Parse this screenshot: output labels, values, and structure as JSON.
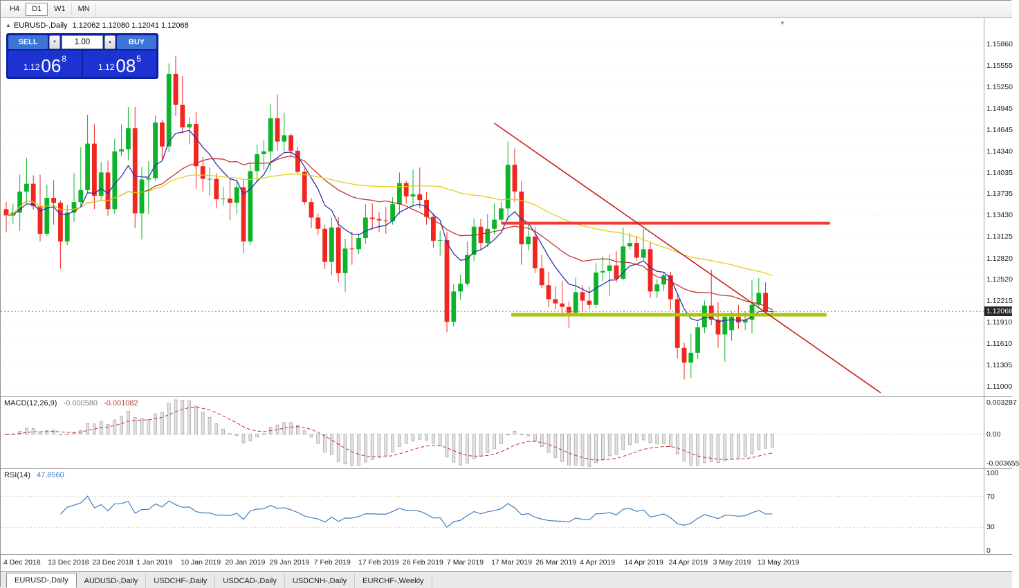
{
  "toolbar": {
    "timeframes": [
      {
        "label": "H4",
        "active": false
      },
      {
        "label": "D1",
        "active": true
      },
      {
        "label": "W1",
        "active": false
      },
      {
        "label": "MN",
        "active": false
      }
    ]
  },
  "chart_header": {
    "title": "EURUSD-,Daily",
    "ohlc": "1.12062 1.12080 1.12041 1.12068"
  },
  "trade_panel": {
    "sell_label": "SELL",
    "buy_label": "BUY",
    "volume_value": "1.00",
    "sell_price": {
      "prefix": "1.12",
      "pips": "06",
      "point": "8"
    },
    "buy_price": {
      "prefix": "1.12",
      "pips": "08",
      "point": "5"
    }
  },
  "price_axis": {
    "current_label": "1.12068"
  },
  "indicators": {
    "macd": {
      "label": "MACD(12,26,9)",
      "value1": "-0.000580",
      "value2": "-0.001082",
      "scale_top": "0.003287",
      "scale_mid": "0.00",
      "scale_bottom": "-0.003655"
    },
    "rsi": {
      "label": "RSI(14)",
      "value": "47.8560",
      "levels": [
        "100",
        "70",
        "30",
        "0"
      ]
    }
  },
  "date_axis": {
    "x0": 4,
    "step": 64.1,
    "labels": [
      "4 Dec 2018",
      "13 Dec 2018",
      "23 Dec 2018",
      "1 Jan 2019",
      "10 Jan 2019",
      "20 Jan 2019",
      "29 Jan 2019",
      "7 Feb 2019",
      "17 Feb 2019",
      "26 Feb 2019",
      "7 Mar 2019",
      "17 Mar 2019",
      "26 Mar 2019",
      "4 Apr 2019",
      "14 Apr 2019",
      "24 Apr 2019",
      "3 May 2019",
      "13 May 2019"
    ]
  },
  "bottom_tabs": [
    {
      "label": "EURUSD-,Daily",
      "active": true
    },
    {
      "label": "AUDUSD-,Daily",
      "active": false
    },
    {
      "label": "USDCHF-,Daily",
      "active": false
    },
    {
      "label": "USDCAD-,Daily",
      "active": false
    },
    {
      "label": "USDCNH-,Daily",
      "active": false
    },
    {
      "label": "EURCHF-,Weekly",
      "active": false
    }
  ],
  "chart_data": {
    "type": "candlestick",
    "symbol": "EURUSD-",
    "timeframe": "Daily",
    "price_range": [
      1.1086,
      1.16235
    ],
    "layout": {
      "x0": 8,
      "dx": 9.8
    },
    "y_ticks": [
      "1.15860",
      "1.15555",
      "1.15250",
      "1.14945",
      "1.14645",
      "1.14340",
      "1.14035",
      "1.13735",
      "1.13430",
      "1.13125",
      "1.12820",
      "1.12520",
      "1.12215",
      "1.11910",
      "1.11610",
      "1.11305",
      "1.11000"
    ],
    "colors": {
      "bull": "#0cb32b",
      "bear": "#f0261f"
    },
    "current": {
      "open": 1.12062,
      "high": 1.1208,
      "low": 1.12041,
      "close": 1.12068,
      "bid": 1.12068,
      "ask": 1.12085
    },
    "moving_averages": [
      {
        "period": 8,
        "method": "ema",
        "color": "#3030a8"
      },
      {
        "period": 21,
        "method": "sma",
        "color": "#bf3636"
      },
      {
        "period": 55,
        "method": "sma",
        "color": "#e3cf14"
      }
    ],
    "overlays": {
      "trendline": {
        "from": {
          "index": 72,
          "price": 1.1474
        },
        "to": {
          "index": 129,
          "price": 1.1091
        },
        "color": "#c2201a",
        "width": 1.6
      },
      "resistance": {
        "price": 1.1332,
        "from_index": 73,
        "to_index": 121.5,
        "color": "#f03b30",
        "width": 4
      },
      "support": {
        "price": 1.1202,
        "from_index": 74.5,
        "to_index": 121,
        "color": "#a9c306",
        "width": 5
      }
    },
    "macd_settings": {
      "fast": 12,
      "slow": 26,
      "signal": 9,
      "current_macd": -0.00058,
      "current_signal": -0.001082
    },
    "rsi_settings": {
      "period": 14,
      "current": 47.856
    },
    "candles": [
      [
        1.1352,
        1.1362,
        1.1319,
        1.1343
      ],
      [
        1.1343,
        1.136,
        1.1331,
        1.1347
      ],
      [
        1.1347,
        1.1401,
        1.1321,
        1.1377
      ],
      [
        1.1377,
        1.1425,
        1.136,
        1.1388
      ],
      [
        1.1388,
        1.14,
        1.1351,
        1.1356
      ],
      [
        1.1356,
        1.1401,
        1.1306,
        1.1317
      ],
      [
        1.1317,
        1.1387,
        1.1314,
        1.1368
      ],
      [
        1.1368,
        1.1393,
        1.133,
        1.1361
      ],
      [
        1.1361,
        1.1364,
        1.1267,
        1.1306
      ],
      [
        1.1306,
        1.1358,
        1.1301,
        1.1347
      ],
      [
        1.1347,
        1.1403,
        1.1334,
        1.1362
      ],
      [
        1.1362,
        1.144,
        1.1355,
        1.1379
      ],
      [
        1.1379,
        1.1486,
        1.1376,
        1.1445
      ],
      [
        1.1445,
        1.1473,
        1.1352,
        1.1371
      ],
      [
        1.1371,
        1.1419,
        1.1366,
        1.1404
      ],
      [
        1.1404,
        1.1421,
        1.1343,
        1.1352
      ],
      [
        1.1352,
        1.1452,
        1.1345,
        1.1434
      ],
      [
        1.1434,
        1.1472,
        1.1427,
        1.1437
      ],
      [
        1.1437,
        1.1497,
        1.1421,
        1.1467
      ],
      [
        1.1467,
        1.1497,
        1.1325,
        1.1346
      ],
      [
        1.1346,
        1.1412,
        1.1309,
        1.1394
      ],
      [
        1.1394,
        1.142,
        1.1345,
        1.1396
      ],
      [
        1.1396,
        1.1485,
        1.1392,
        1.1475
      ],
      [
        1.1475,
        1.1479,
        1.1422,
        1.1441
      ],
      [
        1.1441,
        1.1559,
        1.1433,
        1.1544
      ],
      [
        1.1544,
        1.157,
        1.1484,
        1.15
      ],
      [
        1.15,
        1.1541,
        1.1459,
        1.1468
      ],
      [
        1.1468,
        1.1482,
        1.1444,
        1.1473
      ],
      [
        1.1473,
        1.149,
        1.1381,
        1.1413
      ],
      [
        1.1413,
        1.1426,
        1.1377,
        1.1395
      ],
      [
        1.1395,
        1.1411,
        1.1371,
        1.1395
      ],
      [
        1.1395,
        1.1403,
        1.1353,
        1.1366
      ],
      [
        1.1366,
        1.1383,
        1.1357,
        1.1367
      ],
      [
        1.1367,
        1.1395,
        1.1336,
        1.1361
      ],
      [
        1.1361,
        1.1394,
        1.1345,
        1.1383
      ],
      [
        1.1383,
        1.1393,
        1.1289,
        1.1306
      ],
      [
        1.1306,
        1.1418,
        1.1301,
        1.1406
      ],
      [
        1.1406,
        1.1444,
        1.139,
        1.143
      ],
      [
        1.143,
        1.145,
        1.1408,
        1.1434
      ],
      [
        1.1434,
        1.1502,
        1.1406,
        1.1481
      ],
      [
        1.1481,
        1.1515,
        1.1435,
        1.1448
      ],
      [
        1.1448,
        1.1489,
        1.1434,
        1.1457
      ],
      [
        1.1457,
        1.146,
        1.1425,
        1.1435
      ],
      [
        1.1435,
        1.144,
        1.1402,
        1.1405
      ],
      [
        1.1405,
        1.141,
        1.1358,
        1.1362
      ],
      [
        1.1362,
        1.1368,
        1.1325,
        1.134
      ],
      [
        1.134,
        1.1346,
        1.1315,
        1.1324
      ],
      [
        1.1324,
        1.133,
        1.1267,
        1.1277
      ],
      [
        1.1277,
        1.134,
        1.1258,
        1.1326
      ],
      [
        1.1326,
        1.1341,
        1.1248,
        1.1261
      ],
      [
        1.1261,
        1.131,
        1.1234,
        1.1296
      ],
      [
        1.1296,
        1.132,
        1.1273,
        1.1295
      ],
      [
        1.1295,
        1.1318,
        1.1288,
        1.1311
      ],
      [
        1.1311,
        1.1359,
        1.1303,
        1.134
      ],
      [
        1.134,
        1.136,
        1.1323,
        1.1338
      ],
      [
        1.1338,
        1.1348,
        1.1319,
        1.1336
      ],
      [
        1.1336,
        1.1355,
        1.1317,
        1.1335
      ],
      [
        1.1335,
        1.1369,
        1.133,
        1.1359
      ],
      [
        1.1359,
        1.1404,
        1.1345,
        1.1389
      ],
      [
        1.1389,
        1.1392,
        1.136,
        1.137
      ],
      [
        1.137,
        1.1408,
        1.1355,
        1.1373
      ],
      [
        1.1373,
        1.1411,
        1.1353,
        1.1365
      ],
      [
        1.1365,
        1.1376,
        1.133,
        1.1341
      ],
      [
        1.1341,
        1.1346,
        1.1297,
        1.1307
      ],
      [
        1.1307,
        1.1321,
        1.1286,
        1.1308
      ],
      [
        1.1308,
        1.132,
        1.1177,
        1.1192
      ],
      [
        1.1192,
        1.1246,
        1.1185,
        1.1235
      ],
      [
        1.1235,
        1.1259,
        1.1223,
        1.1246
      ],
      [
        1.1246,
        1.1306,
        1.1243,
        1.1287
      ],
      [
        1.1287,
        1.1339,
        1.1278,
        1.1327
      ],
      [
        1.1327,
        1.1338,
        1.1294,
        1.1304
      ],
      [
        1.1304,
        1.1345,
        1.1298,
        1.1324
      ],
      [
        1.1324,
        1.136,
        1.1316,
        1.1337
      ],
      [
        1.1337,
        1.1362,
        1.1334,
        1.1353
      ],
      [
        1.1353,
        1.1448,
        1.1336,
        1.1415
      ],
      [
        1.1415,
        1.1438,
        1.1362,
        1.1377
      ],
      [
        1.1377,
        1.1392,
        1.1273,
        1.1302
      ],
      [
        1.1302,
        1.133,
        1.1293,
        1.1313
      ],
      [
        1.1313,
        1.1327,
        1.1261,
        1.1268
      ],
      [
        1.1268,
        1.1287,
        1.124,
        1.1244
      ],
      [
        1.1244,
        1.1263,
        1.1213,
        1.1224
      ],
      [
        1.1224,
        1.1242,
        1.121,
        1.1218
      ],
      [
        1.1218,
        1.125,
        1.1199,
        1.1213
      ],
      [
        1.1213,
        1.1221,
        1.1183,
        1.1205
      ],
      [
        1.1205,
        1.1255,
        1.1201,
        1.1234
      ],
      [
        1.1234,
        1.1244,
        1.1206,
        1.1222
      ],
      [
        1.1222,
        1.1242,
        1.121,
        1.1216
      ],
      [
        1.1216,
        1.1276,
        1.1212,
        1.1262
      ],
      [
        1.1262,
        1.1285,
        1.125,
        1.1264
      ],
      [
        1.1264,
        1.1288,
        1.1229,
        1.1272
      ],
      [
        1.1272,
        1.1292,
        1.1248,
        1.1253
      ],
      [
        1.1253,
        1.1326,
        1.1251,
        1.1299
      ],
      [
        1.1299,
        1.1318,
        1.1295,
        1.1304
      ],
      [
        1.1304,
        1.1314,
        1.1279,
        1.1283
      ],
      [
        1.1283,
        1.1324,
        1.128,
        1.1295
      ],
      [
        1.1295,
        1.1305,
        1.1226,
        1.1235
      ],
      [
        1.1235,
        1.1252,
        1.1226,
        1.1245
      ],
      [
        1.1245,
        1.1262,
        1.1236,
        1.1258
      ],
      [
        1.1258,
        1.1263,
        1.1209,
        1.1224
      ],
      [
        1.1224,
        1.123,
        1.114,
        1.1155
      ],
      [
        1.1155,
        1.1162,
        1.111,
        1.1134
      ],
      [
        1.1134,
        1.1175,
        1.1112,
        1.1148
      ],
      [
        1.1148,
        1.1191,
        1.1139,
        1.1184
      ],
      [
        1.1184,
        1.1222,
        1.1176,
        1.1215
      ],
      [
        1.1215,
        1.1266,
        1.1187,
        1.1195
      ],
      [
        1.1195,
        1.122,
        1.1155,
        1.1174
      ],
      [
        1.1174,
        1.1205,
        1.1135,
        1.1199
      ],
      [
        1.118,
        1.1206,
        1.1165,
        1.1199
      ],
      [
        1.1199,
        1.1216,
        1.1182,
        1.1191
      ],
      [
        1.1191,
        1.1207,
        1.118,
        1.1195
      ],
      [
        1.1195,
        1.1251,
        1.1175,
        1.1216
      ],
      [
        1.1216,
        1.1254,
        1.1211,
        1.1233
      ],
      [
        1.1233,
        1.1248,
        1.1201,
        1.1207
      ],
      [
        1.12062,
        1.1208,
        1.12041,
        1.12068
      ]
    ]
  }
}
